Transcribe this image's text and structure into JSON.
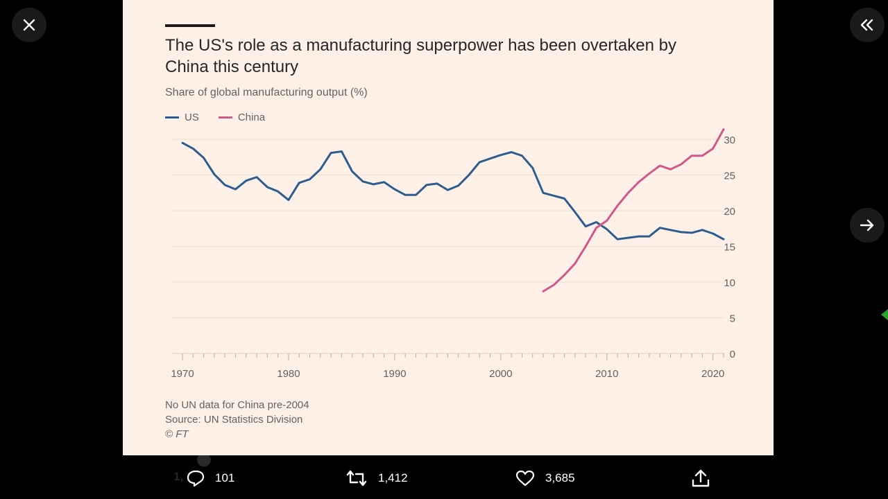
{
  "viewer": {
    "close_icon": "close-icon",
    "collapse_icon": "double-chevron-left-icon",
    "next_icon": "arrow-right-icon"
  },
  "chart": {
    "title": "The US's role as a manufacturing superpower has been overtaken by China this century",
    "subtitle": "Share of global manufacturing output (%)",
    "notes": [
      "No UN data for China pre-2004",
      "Source: UN Statistics Division",
      "© FT"
    ]
  },
  "chart_data": {
    "type": "line",
    "title": "The US's role as a manufacturing superpower has been overtaken by China this century",
    "ylabel": "Share of global manufacturing output (%)",
    "xlim": [
      1970,
      2021
    ],
    "ylim": [
      0,
      30
    ],
    "x_ticks": [
      1970,
      1980,
      1990,
      2000,
      2010,
      2020
    ],
    "y_ticks": [
      0,
      5,
      10,
      15,
      20,
      25,
      30
    ],
    "grid": true,
    "legend_position": "top-left",
    "series": [
      {
        "name": "US",
        "color": "#2d5c8f",
        "x": [
          1970,
          1971,
          1972,
          1973,
          1974,
          1975,
          1976,
          1977,
          1978,
          1979,
          1980,
          1981,
          1982,
          1983,
          1984,
          1985,
          1986,
          1987,
          1988,
          1989,
          1990,
          1991,
          1992,
          1993,
          1994,
          1995,
          1996,
          1997,
          1998,
          1999,
          2000,
          2001,
          2002,
          2003,
          2004,
          2005,
          2006,
          2007,
          2008,
          2009,
          2010,
          2011,
          2012,
          2013,
          2014,
          2015,
          2016,
          2017,
          2018,
          2019,
          2020,
          2021
        ],
        "values": [
          29.5,
          28.7,
          27.4,
          25.1,
          23.6,
          23.0,
          24.2,
          24.7,
          23.3,
          22.7,
          21.5,
          23.9,
          24.4,
          25.8,
          28.1,
          28.3,
          25.5,
          24.1,
          23.7,
          24.0,
          23.0,
          22.2,
          22.2,
          23.6,
          23.8,
          22.9,
          23.5,
          25.0,
          26.8,
          27.3,
          27.8,
          28.2,
          27.7,
          26.0,
          22.5,
          22.1,
          21.7,
          19.8,
          17.8,
          18.4,
          17.4,
          16.0,
          16.2,
          16.4,
          16.4,
          17.6,
          17.3,
          17.0,
          16.9,
          17.3,
          16.8,
          16.0
        ]
      },
      {
        "name": "China",
        "color": "#d0578a",
        "x": [
          2004,
          2005,
          2006,
          2007,
          2008,
          2009,
          2010,
          2011,
          2012,
          2013,
          2014,
          2015,
          2016,
          2017,
          2018,
          2019,
          2020,
          2021
        ],
        "values": [
          8.7,
          9.6,
          11.0,
          12.6,
          15.0,
          17.6,
          18.6,
          20.7,
          22.5,
          24.0,
          25.2,
          26.3,
          25.8,
          26.5,
          27.7,
          27.7,
          28.7,
          31.4
        ]
      }
    ]
  },
  "actions": {
    "replies": {
      "icon": "reply-icon",
      "count": "101"
    },
    "retweets": {
      "icon": "retweet-icon",
      "count": "1,412"
    },
    "likes": {
      "icon": "heart-icon",
      "count": "3,685"
    },
    "share": {
      "icon": "share-icon"
    }
  }
}
